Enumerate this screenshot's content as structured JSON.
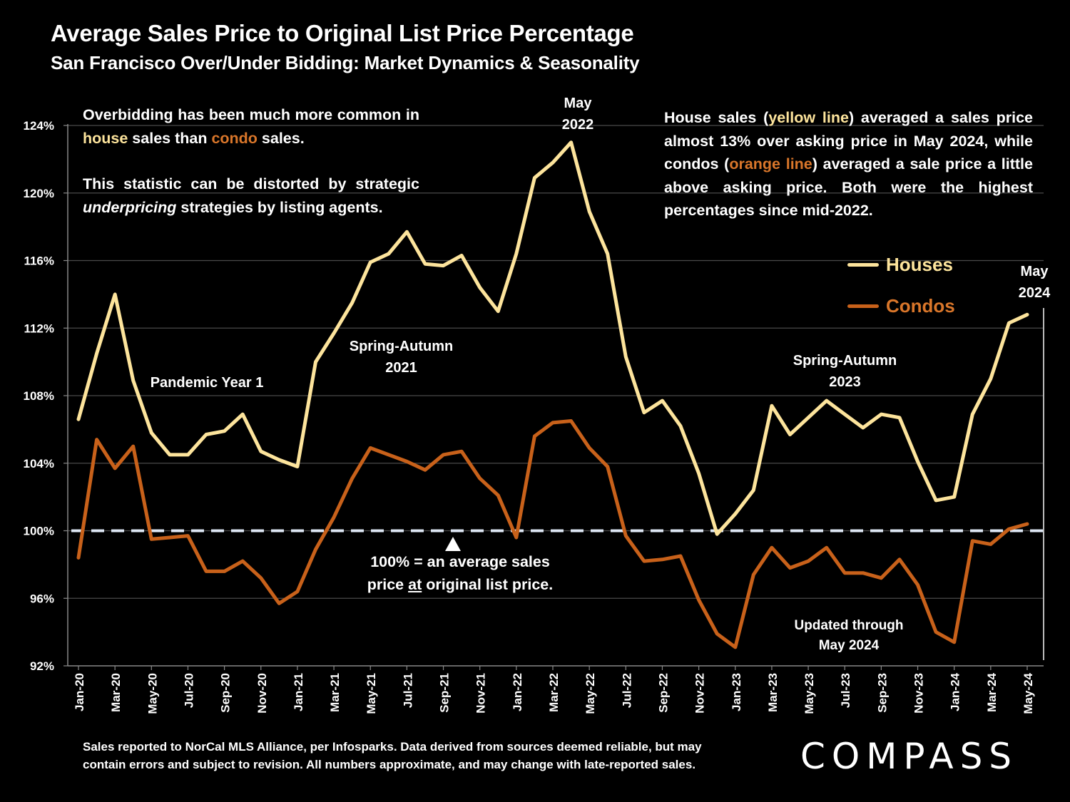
{
  "header": {
    "title": "Average Sales Price to Original List Price Percentage",
    "subtitle": "San Francisco Over/Under Bidding: Market Dynamics & Seasonality"
  },
  "colors": {
    "background": "#000000",
    "houses": "#fde49c",
    "condos": "#c8611a",
    "reference_line": "#dde6f3",
    "gridline": "#4a4a4a"
  },
  "notes": {
    "left_p1": [
      "Overbidding has been much more common in ",
      "house",
      " sales than ",
      "condo",
      " sales."
    ],
    "left_p2": [
      "This statistic can be distorted by strategic ",
      "underpricing",
      " strategies by listing agents."
    ],
    "right": [
      "House sales (",
      "yellow line",
      ") averaged a sales price almost 13% over asking price in May 2024, while condos (",
      "orange line",
      ") averaged a sale price a little above asking price. Both were the highest percentages since mid-2022."
    ]
  },
  "annotations": {
    "may2022": [
      "May",
      "2022"
    ],
    "may2024": [
      "May",
      "2024"
    ],
    "pandemic": "Pandemic Year 1",
    "spring2021": [
      "Spring-Autumn",
      "2021"
    ],
    "spring2023": [
      "Spring-Autumn",
      "2023"
    ],
    "reference": [
      "100% = an average sales",
      "price ",
      "at",
      " original list price."
    ],
    "updated": [
      "Updated through",
      "May 2024"
    ]
  },
  "footer": {
    "footnote_line1": "Sales reported to NorCal MLS Alliance, per Infosparks. Data derived from sources deemed reliable, but may",
    "footnote_line2": "contain errors and subject to revision. All numbers approximate, and may change with late-reported sales.",
    "logo": "COMPASS"
  },
  "chart_data": {
    "type": "line",
    "title": "Average Sales Price to Original List Price Percentage",
    "subtitle": "San Francisco Over/Under Bidding: Market Dynamics & Seasonality",
    "xlabel": "",
    "ylabel": "",
    "ylim": [
      92,
      124
    ],
    "yticks": [
      92,
      96,
      100,
      104,
      108,
      112,
      116,
      120,
      124
    ],
    "ytick_labels": [
      "92%",
      "96%",
      "100%",
      "104%",
      "108%",
      "112%",
      "116%",
      "120%",
      "124%"
    ],
    "grid": true,
    "legend": "right",
    "reference_line": {
      "value": 100,
      "style": "dashed"
    },
    "x": [
      "Jan-20",
      "Feb-20",
      "Mar-20",
      "Apr-20",
      "May-20",
      "Jun-20",
      "Jul-20",
      "Aug-20",
      "Sep-20",
      "Oct-20",
      "Nov-20",
      "Dec-20",
      "Jan-21",
      "Feb-21",
      "Mar-21",
      "Apr-21",
      "May-21",
      "Jun-21",
      "Jul-21",
      "Aug-21",
      "Sep-21",
      "Oct-21",
      "Nov-21",
      "Dec-21",
      "Jan-22",
      "Feb-22",
      "Mar-22",
      "Apr-22",
      "May-22",
      "Jun-22",
      "Jul-22",
      "Aug-22",
      "Sep-22",
      "Oct-22",
      "Nov-22",
      "Dec-22",
      "Jan-23",
      "Feb-23",
      "Mar-23",
      "Apr-23",
      "May-23",
      "Jun-23",
      "Jul-23",
      "Aug-23",
      "Sep-23",
      "Oct-23",
      "Nov-23",
      "Dec-23",
      "Jan-24",
      "Feb-24",
      "Mar-24",
      "Apr-24",
      "May-24"
    ],
    "xtick_labels": [
      "Jan-20",
      "Mar-20",
      "May-20",
      "Jul-20",
      "Sep-20",
      "Nov-20",
      "Jan-21",
      "Mar-21",
      "May-21",
      "Jul-21",
      "Sep-21",
      "Nov-21",
      "Jan-22",
      "Mar-22",
      "May-22",
      "Jul-22",
      "Sep-22",
      "Nov-22",
      "Jan-23",
      "Mar-23",
      "May-23",
      "Jul-23",
      "Sep-23",
      "Nov-23",
      "Jan-24",
      "Mar-24",
      "May-24"
    ],
    "series": [
      {
        "name": "Houses",
        "color": "#fde49c",
        "values": [
          106.6,
          110.5,
          114.0,
          108.9,
          105.8,
          104.5,
          104.5,
          105.7,
          105.9,
          106.9,
          104.7,
          104.2,
          103.8,
          110.0,
          111.7,
          113.5,
          115.9,
          116.4,
          117.7,
          115.8,
          115.7,
          116.3,
          114.4,
          113.0,
          116.4,
          120.9,
          121.8,
          123.0,
          118.9,
          116.4,
          110.3,
          107.0,
          107.7,
          106.2,
          103.4,
          99.8,
          101.0,
          102.4,
          107.4,
          105.7,
          106.7,
          107.7,
          106.9,
          106.1,
          106.9,
          106.7,
          104.1,
          101.8,
          102.0,
          106.9,
          109.0,
          112.3,
          112.8
        ]
      },
      {
        "name": "Condos",
        "color": "#c8611a",
        "values": [
          98.4,
          105.4,
          103.7,
          105.0,
          99.5,
          99.6,
          99.7,
          97.6,
          97.6,
          98.2,
          97.2,
          95.7,
          96.4,
          98.9,
          100.8,
          103.1,
          104.9,
          104.5,
          104.1,
          103.6,
          104.5,
          104.7,
          103.1,
          102.1,
          99.6,
          105.6,
          106.4,
          106.5,
          104.9,
          103.8,
          99.7,
          98.2,
          98.3,
          98.5,
          95.9,
          93.9,
          93.1,
          97.4,
          99.0,
          97.8,
          98.2,
          99.0,
          97.5,
          97.5,
          97.2,
          98.3,
          96.8,
          94.0,
          93.4,
          99.4,
          99.2,
          100.1,
          100.4
        ]
      }
    ]
  }
}
